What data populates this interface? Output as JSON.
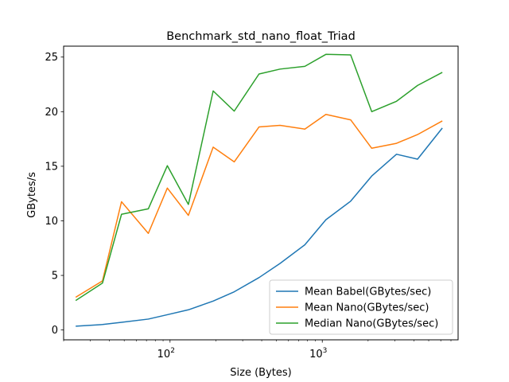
{
  "chart_data": {
    "type": "line",
    "title": "Benchmark_std_nano_float_Triad",
    "xlabel": "Size (Bytes)",
    "ylabel": "GBytes/s",
    "xscale": "log",
    "xlim": [
      20,
      7800
    ],
    "ylim": [
      -0.9,
      26.0
    ],
    "grid": false,
    "legend_position": "lower-right",
    "x": [
      24,
      36,
      48,
      72,
      96,
      132,
      192,
      264,
      384,
      528,
      768,
      1056,
      1536,
      2112,
      3072,
      4224,
      6144
    ],
    "x_ticks": [
      {
        "value": 100,
        "label_base": "10",
        "label_exp": "2"
      },
      {
        "value": 1000,
        "label_base": "10",
        "label_exp": "3"
      }
    ],
    "y_ticks": [
      0,
      5,
      10,
      15,
      20,
      25
    ],
    "series": [
      {
        "name": "Mean Babel(GBytes/sec)",
        "color": "#1f77b4",
        "values": [
          0.35,
          0.5,
          0.7,
          1.0,
          1.4,
          1.85,
          2.65,
          3.5,
          4.8,
          6.1,
          7.8,
          10.1,
          11.8,
          14.1,
          16.1,
          15.65,
          18.5
        ]
      },
      {
        "name": "Mean Nano(GBytes/sec)",
        "color": "#ff7f0e",
        "values": [
          3.0,
          4.5,
          11.75,
          8.85,
          13.0,
          10.5,
          16.75,
          15.4,
          18.6,
          18.75,
          18.4,
          19.75,
          19.25,
          16.65,
          17.1,
          17.9,
          19.15
        ]
      },
      {
        "name": "Median Nano(GBytes/sec)",
        "color": "#2ca02c",
        "values": [
          2.7,
          4.3,
          10.6,
          11.1,
          15.05,
          11.5,
          21.9,
          20.05,
          23.45,
          23.9,
          24.15,
          25.25,
          25.2,
          20.0,
          20.95,
          22.4,
          23.6
        ]
      }
    ]
  }
}
